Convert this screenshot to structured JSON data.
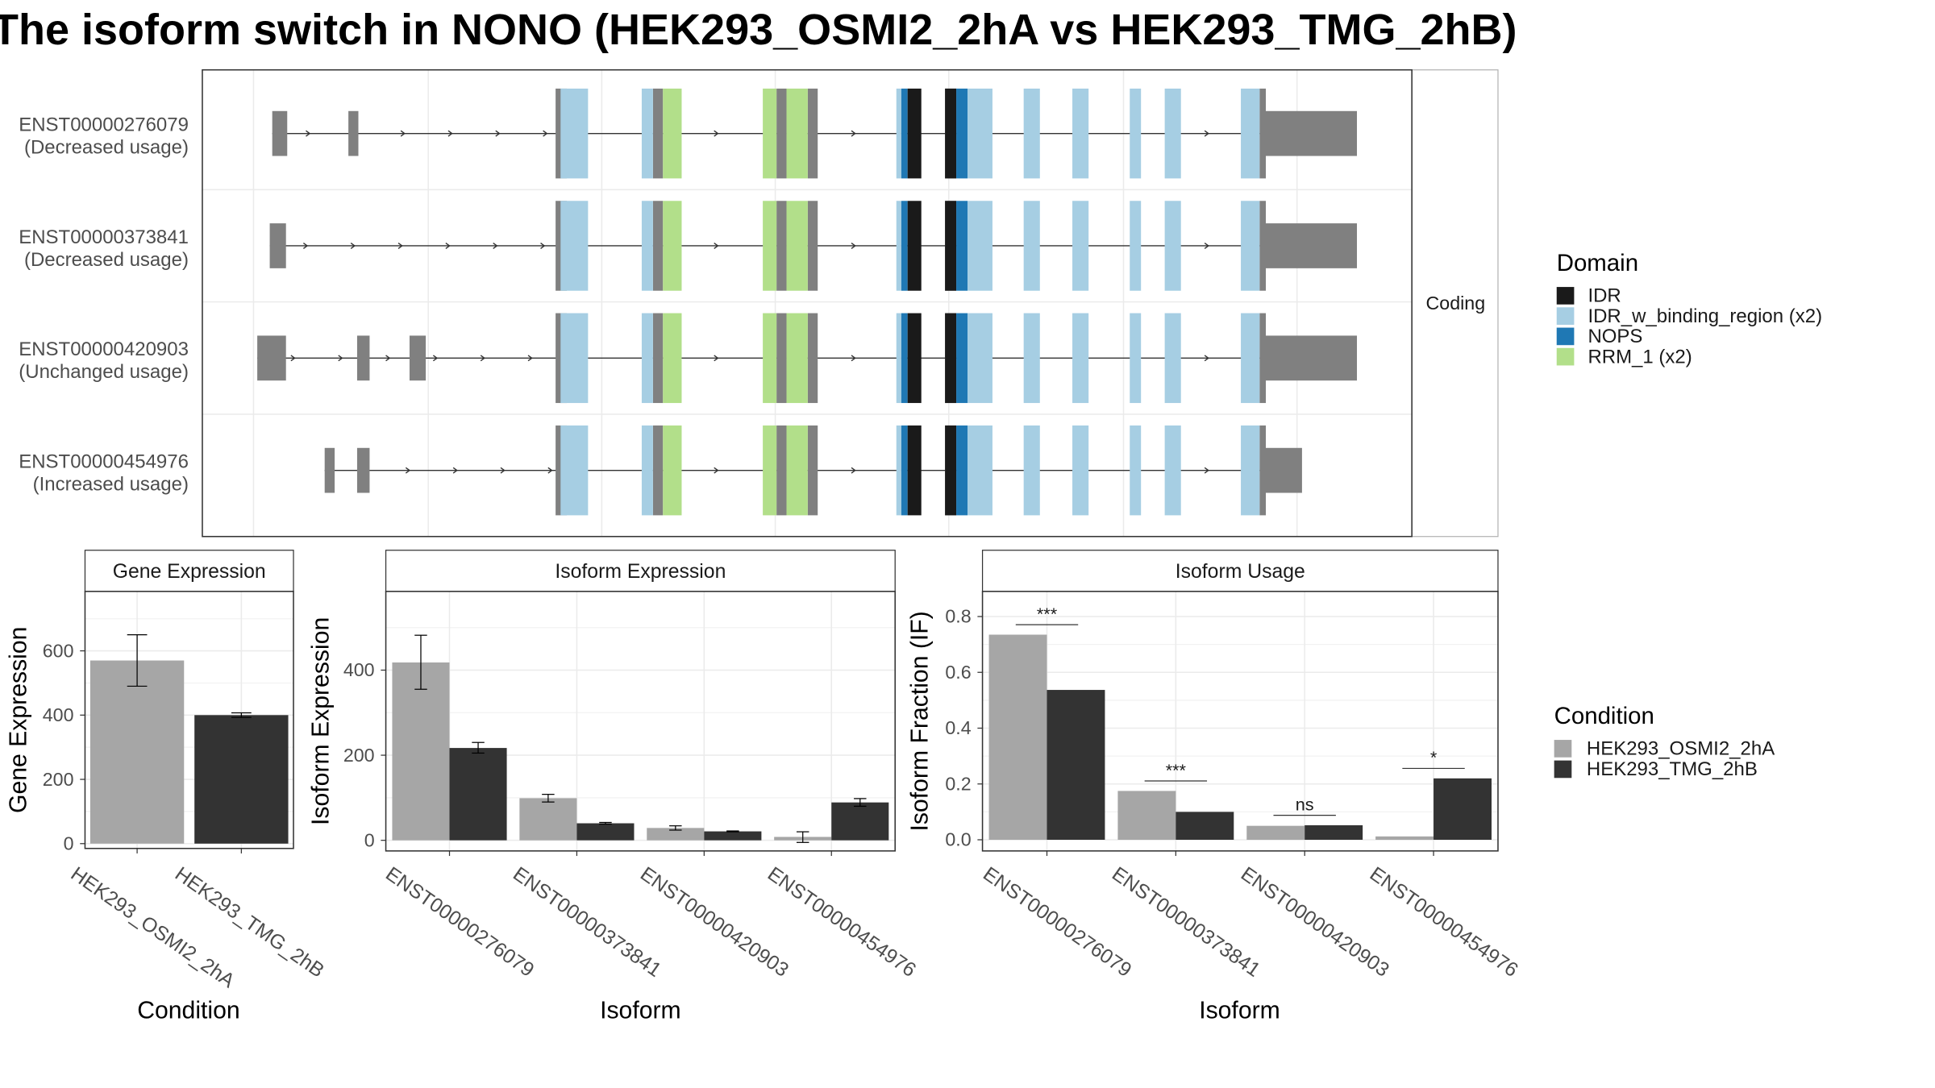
{
  "title": "The isoform switch in NONO (HEK293_OSMI2_2hA vs HEK293_TMG_2hB)",
  "colors": {
    "exon": "#808080",
    "IDR": "#1a1a1a",
    "IDR_w_binding_region": "#a6cee3",
    "NOPS": "#1f78b4",
    "RRM_1": "#b2df8a",
    "cond_a": "#a6a6a6",
    "cond_b": "#333333"
  },
  "chart_data": [
    {
      "type": "gene_structure",
      "strip_label": "Coding",
      "legend_title": "Domain",
      "legend": [
        {
          "key": "IDR",
          "label": "IDR"
        },
        {
          "key": "IDR_w_binding_region",
          "label": "IDR_w_binding_region (x2)"
        },
        {
          "key": "NOPS",
          "label": "NOPS"
        },
        {
          "key": "RRM_1",
          "label": "RRM_1 (x2)"
        }
      ],
      "transcripts": [
        {
          "id": "ENST00000276079",
          "usage": "(Decreased usage)",
          "utr5": [
            [
              218,
              230
            ],
            [
              279,
              287
            ]
          ],
          "utr3_end": 1087
        },
        {
          "id": "ENST00000373841",
          "usage": "(Decreased usage)",
          "utr5": [
            [
              216,
              229
            ]
          ],
          "utr3_end": 1087
        },
        {
          "id": "ENST00000420903",
          "usage": "(Unchanged usage)",
          "utr5": [
            [
              206,
              229
            ],
            [
              286,
              296
            ],
            [
              328,
              341
            ]
          ],
          "utr3_end": 1087
        },
        {
          "id": "ENST00000454976",
          "usage": "(Increased usage)",
          "utr5": [
            [
              260,
              268
            ],
            [
              286,
              296
            ]
          ],
          "utr3_end": 1043
        }
      ]
    },
    {
      "type": "bar",
      "strip_title": "Gene Expression",
      "xlabel": "Condition",
      "ylabel": "Gene Expression",
      "categories": [
        "HEK293_OSMI2_2hA",
        "HEK293_TMG_2hB"
      ],
      "values": [
        570,
        400
      ],
      "errors": [
        [
          490,
          650
        ],
        [
          393,
          407
        ]
      ],
      "ylim": [
        -15,
        785
      ],
      "yticks": [
        0,
        200,
        400,
        600
      ]
    },
    {
      "type": "bar",
      "strip_title": "Isoform Expression",
      "xlabel": "Isoform",
      "ylabel": "Isoform Expression",
      "categories": [
        "ENST00000276079",
        "ENST00000373841",
        "ENST00000420903",
        "ENST00000454976"
      ],
      "series": [
        {
          "values": [
            418,
            99,
            29,
            8
          ],
          "errors": [
            [
              355,
              482
            ],
            [
              90,
              108
            ],
            [
              24,
              34
            ],
            [
              -5,
              20
            ]
          ]
        },
        {
          "values": [
            217,
            40,
            21,
            89
          ],
          "errors": [
            [
              205,
              230
            ],
            [
              38,
              42
            ],
            [
              20,
              22
            ],
            [
              80,
              98
            ]
          ]
        }
      ],
      "ylim": [
        -25,
        585
      ],
      "yticks": [
        0,
        200,
        400
      ]
    },
    {
      "type": "bar",
      "strip_title": "Isoform Usage",
      "xlabel": "Isoform",
      "ylabel": "Isoform Fraction (IF)",
      "categories": [
        "ENST00000276079",
        "ENST00000373841",
        "ENST00000420903",
        "ENST00000454976"
      ],
      "series": [
        {
          "values": [
            0.735,
            0.175,
            0.05,
            0.012
          ]
        },
        {
          "values": [
            0.537,
            0.1,
            0.052,
            0.22
          ]
        }
      ],
      "significance": [
        "***",
        "***",
        "ns",
        "*"
      ],
      "ylim": [
        -0.04,
        0.89
      ],
      "yticks": [
        0.0,
        0.2,
        0.4,
        0.6,
        0.8
      ],
      "ytick_labels": [
        "0.0",
        "0.2",
        "0.4",
        "0.6",
        "0.8"
      ]
    }
  ],
  "condition_legend": {
    "title": "Condition",
    "items": [
      "HEK293_OSMI2_2hA",
      "HEK293_TMG_2hB"
    ]
  }
}
